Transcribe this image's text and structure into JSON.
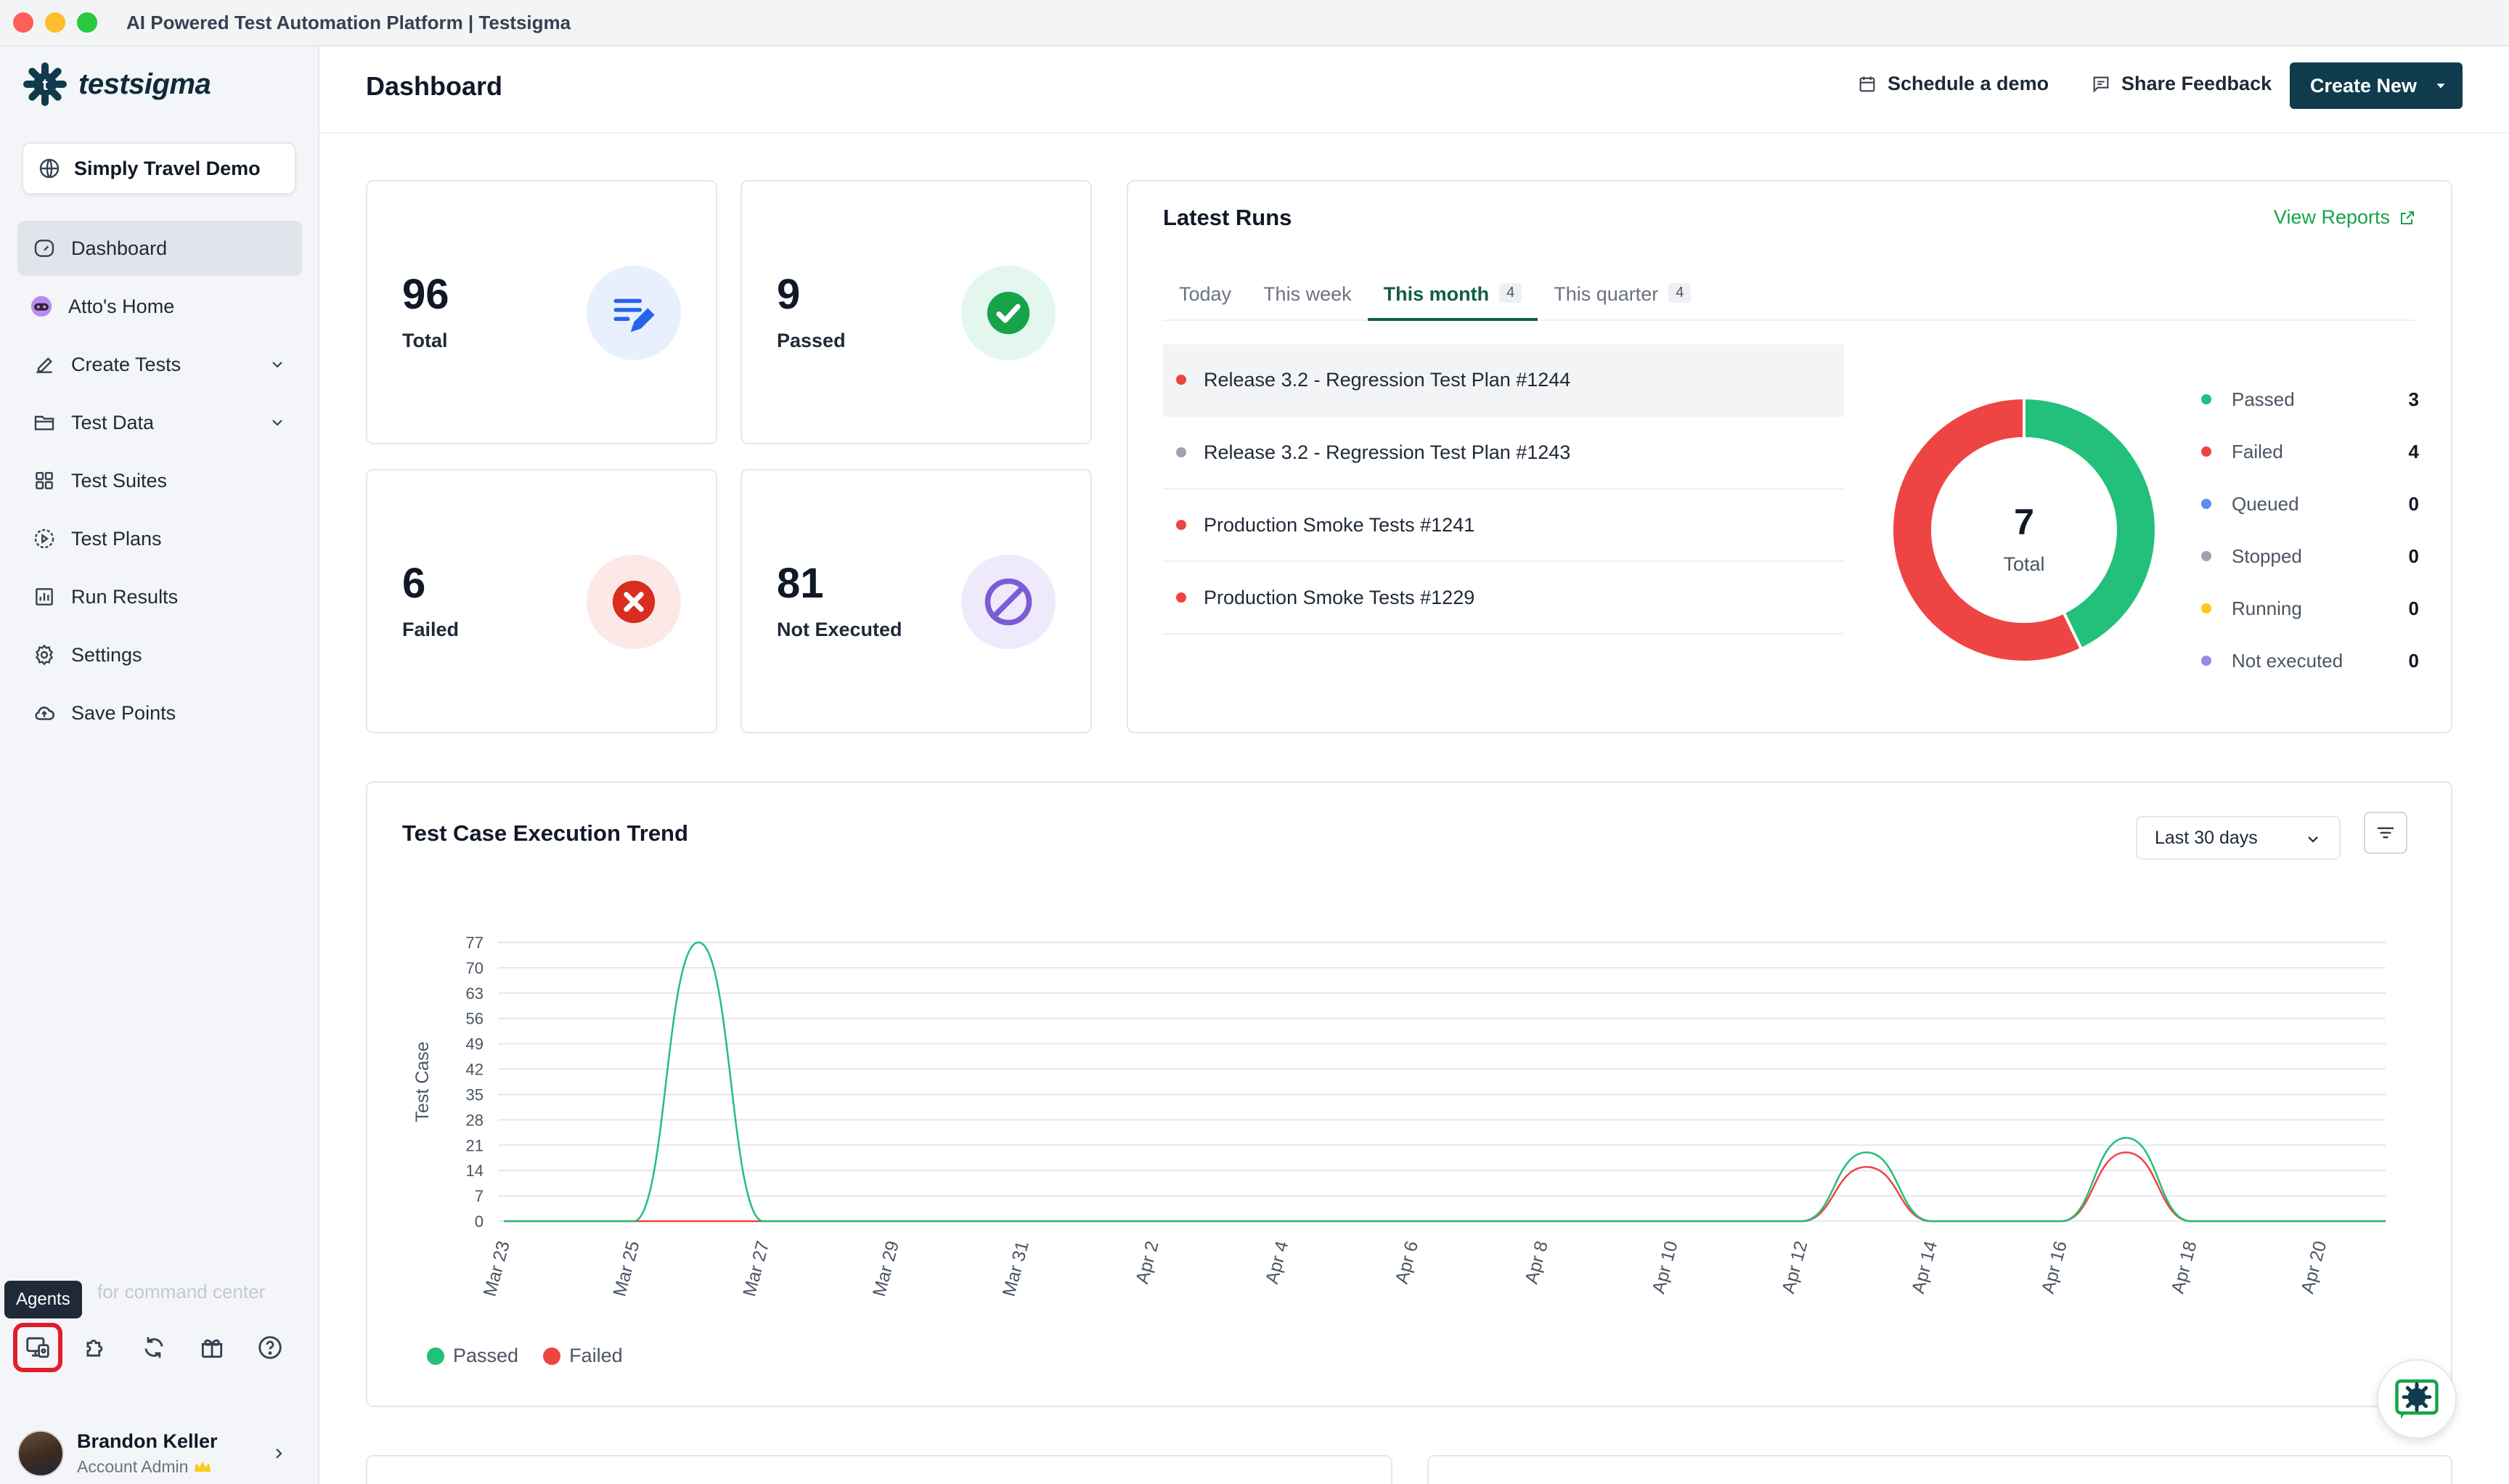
{
  "window": {
    "title": "AI Powered Test Automation Platform | Testsigma",
    "lights": [
      "#fe5f57",
      "#febc2e",
      "#28c840"
    ]
  },
  "sidebar": {
    "brand": "testsigma",
    "workspace": "Simply Travel Demo",
    "items": [
      {
        "label": "Dashboard",
        "icon": "gauge-icon",
        "active": true
      },
      {
        "label": "Atto's Home",
        "icon": "atto-icon"
      },
      {
        "label": "Create Tests",
        "icon": "pencil-icon",
        "expandable": true
      },
      {
        "label": "Test Data",
        "icon": "folder-icon",
        "expandable": true
      },
      {
        "label": "Test Suites",
        "icon": "grid-icon"
      },
      {
        "label": "Test Plans",
        "icon": "play-circle-icon"
      },
      {
        "label": "Run Results",
        "icon": "bar-chart-icon"
      },
      {
        "label": "Settings",
        "icon": "gear-icon"
      },
      {
        "label": "Save Points",
        "icon": "cloud-icon"
      }
    ],
    "tooltip": "Agents",
    "command_hint": "for command center",
    "tools": [
      "agents-icon",
      "puzzle-icon",
      "sync-icon",
      "gift-icon",
      "help-icon"
    ],
    "user": {
      "name": "Brandon Keller",
      "role": "Account Admin"
    }
  },
  "header": {
    "title": "Dashboard",
    "schedule_demo": "Schedule a demo",
    "share_feedback": "Share Feedback",
    "create_new": "Create New"
  },
  "stats": {
    "total": {
      "value": "96",
      "label": "Total",
      "color": "#2563eb",
      "bg": "#e8f0fd"
    },
    "passed": {
      "value": "9",
      "label": "Passed",
      "color": "#16a34a",
      "bg": "#e3f7ee"
    },
    "failed": {
      "value": "6",
      "label": "Failed",
      "color": "#dc2626",
      "bg": "#fde8e8"
    },
    "not_executed": {
      "value": "81",
      "label": "Not Executed",
      "color": "#7c5cd6",
      "bg": "#efeafb"
    }
  },
  "latest_runs": {
    "title": "Latest Runs",
    "view_reports": "View Reports",
    "tabs": [
      {
        "label": "Today",
        "badge": ""
      },
      {
        "label": "This week",
        "badge": ""
      },
      {
        "label": "This month",
        "badge": "4",
        "active": true
      },
      {
        "label": "This quarter",
        "badge": "4"
      }
    ],
    "runs": [
      {
        "name": "Release 3.2 - Regression Test Plan #1244",
        "status_color": "#ef4444"
      },
      {
        "name": "Release 3.2 - Regression Test Plan #1243",
        "status_color": "#9ca3af"
      },
      {
        "name": "Production Smoke Tests #1241",
        "status_color": "#ef4444"
      },
      {
        "name": "Production Smoke Tests #1229",
        "status_color": "#ef4444"
      }
    ],
    "donut": {
      "total_value": "7",
      "total_label": "Total",
      "segments": [
        {
          "label": "Passed",
          "value": 3,
          "color": "#22c07a"
        },
        {
          "label": "Failed",
          "value": 4,
          "color": "#ef4444"
        }
      ]
    },
    "legend": [
      {
        "label": "Passed",
        "value": "3",
        "color": "#22c07a"
      },
      {
        "label": "Failed",
        "value": "4",
        "color": "#ef4444"
      },
      {
        "label": "Queued",
        "value": "0",
        "color": "#5b8def"
      },
      {
        "label": "Stopped",
        "value": "0",
        "color": "#9ca3af"
      },
      {
        "label": "Running",
        "value": "0",
        "color": "#facc15"
      },
      {
        "label": "Not executed",
        "value": "0",
        "color": "#9b87e6"
      }
    ]
  },
  "trend": {
    "title": "Test Case Execution Trend",
    "range": "Last 30 days"
  },
  "chart_data": {
    "type": "line",
    "xlabel": "",
    "ylabel": "Test Case",
    "yticks": [
      0,
      7,
      14,
      21,
      28,
      35,
      42,
      49,
      56,
      63,
      70,
      77
    ],
    "ylim": [
      0,
      77
    ],
    "x_tick_labels": [
      "Mar 23",
      "Mar 25",
      "Mar 27",
      "Mar 29",
      "Mar 31",
      "Apr 2",
      "Apr 4",
      "Apr 6",
      "Apr 8",
      "Apr 10",
      "Apr 12",
      "Apr 14",
      "Apr 16",
      "Apr 18",
      "Apr 20"
    ],
    "x": [
      "Mar 23",
      "Mar 24",
      "Mar 25",
      "Mar 26",
      "Mar 27",
      "Mar 28",
      "Mar 29",
      "Mar 30",
      "Mar 31",
      "Apr 1",
      "Apr 2",
      "Apr 3",
      "Apr 4",
      "Apr 5",
      "Apr 6",
      "Apr 7",
      "Apr 8",
      "Apr 9",
      "Apr 10",
      "Apr 11",
      "Apr 12",
      "Apr 13",
      "Apr 14",
      "Apr 15",
      "Apr 16",
      "Apr 17",
      "Apr 18",
      "Apr 19",
      "Apr 20",
      "Apr 21"
    ],
    "series": [
      {
        "name": "Passed",
        "color": "#22c07a",
        "values": [
          0,
          0,
          0,
          77,
          0,
          0,
          0,
          0,
          0,
          0,
          0,
          0,
          0,
          0,
          0,
          0,
          0,
          0,
          0,
          0,
          0,
          19,
          0,
          0,
          0,
          23,
          0,
          0,
          0,
          0
        ]
      },
      {
        "name": "Failed",
        "color": "#ef4444",
        "values": [
          0,
          0,
          0,
          0,
          0,
          0,
          0,
          0,
          0,
          0,
          0,
          0,
          0,
          0,
          0,
          0,
          0,
          0,
          0,
          0,
          0,
          15,
          0,
          0,
          0,
          19,
          0,
          0,
          0,
          0
        ]
      }
    ],
    "legend_position": "bottom-left",
    "grid": true
  }
}
